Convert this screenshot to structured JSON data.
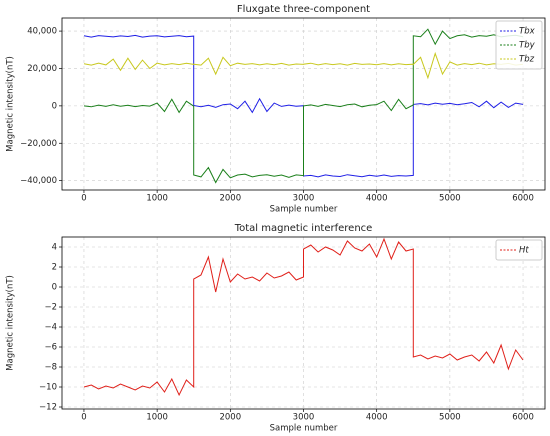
{
  "chart_data": [
    {
      "type": "line",
      "title": "Fluxgate three-component",
      "xlabel": "Sample number",
      "ylabel": "Magnetic intensity(nT)",
      "x": [
        0,
        100,
        200,
        300,
        400,
        500,
        600,
        700,
        800,
        900,
        1000,
        1100,
        1200,
        1300,
        1400,
        1500,
        1500,
        1600,
        1700,
        1800,
        1900,
        2000,
        2100,
        2200,
        2300,
        2400,
        2500,
        2600,
        2700,
        2800,
        2900,
        3000,
        3000,
        3100,
        3200,
        3300,
        3400,
        3500,
        3600,
        3700,
        3800,
        3900,
        4000,
        4100,
        4200,
        4300,
        4400,
        4500,
        4500,
        4600,
        4700,
        4800,
        4900,
        5000,
        5100,
        5200,
        5300,
        5400,
        5500,
        5600,
        5700,
        5800,
        5900,
        6000
      ],
      "series": [
        {
          "name": "Tbx",
          "color": "#1f1fe6",
          "values": [
            37500,
            36800,
            37600,
            37200,
            36900,
            37400,
            37100,
            37700,
            36800,
            37300,
            37500,
            36900,
            37200,
            37600,
            37000,
            37300,
            200,
            -500,
            300,
            -800,
            600,
            1000,
            -1500,
            2500,
            -3500,
            3800,
            -3000,
            1500,
            -300,
            400,
            -200,
            100,
            -37500,
            -37200,
            -38000,
            -36900,
            -37500,
            -37800,
            -36800,
            -37400,
            -37900,
            -37100,
            -37600,
            -37000,
            -37700,
            -37300,
            -37500,
            -37200,
            800,
            1200,
            500,
            1500,
            900,
            1300,
            600,
            1100,
            1800,
            -500,
            2500,
            -1000,
            2000,
            -800,
            1500,
            800
          ]
        },
        {
          "name": "Tby",
          "color": "#1a7f1a",
          "values": [
            0,
            -500,
            400,
            -300,
            600,
            -200,
            300,
            -400,
            200,
            -100,
            1500,
            -3000,
            3500,
            -3500,
            2500,
            -200,
            -37000,
            -38000,
            -33000,
            -41000,
            -34000,
            -38500,
            -37000,
            -36500,
            -38000,
            -37200,
            -36800,
            -37600,
            -37000,
            -38200,
            -36900,
            -37300,
            0,
            500,
            -300,
            800,
            200,
            -400,
            600,
            1000,
            -500,
            300,
            700,
            2500,
            -2500,
            3500,
            -1500,
            500,
            37500,
            37000,
            41000,
            33000,
            40000,
            36000,
            37500,
            38000,
            36800,
            37600,
            37200,
            38000,
            36900,
            37400,
            37800,
            37000
          ]
        },
        {
          "name": "Tbz",
          "color": "#c8c81e",
          "values": [
            22500,
            21800,
            22800,
            21900,
            25000,
            19000,
            25500,
            19500,
            24500,
            20000,
            22800,
            21900,
            22600,
            22100,
            22800,
            22200,
            22300,
            21800,
            25500,
            17000,
            26000,
            21500,
            22800,
            22200,
            22600,
            21900,
            22500,
            22000,
            22700,
            21800,
            22400,
            22200,
            22300,
            22800,
            21900,
            22600,
            22100,
            22500,
            21800,
            22700,
            22200,
            22400,
            22000,
            22600,
            21900,
            22500,
            22100,
            22300,
            22200,
            26000,
            15000,
            28000,
            17000,
            23500,
            21800,
            22600,
            22100,
            22800,
            21900,
            22500,
            22200,
            22700,
            21800,
            22300
          ]
        }
      ],
      "xlim": [
        -300,
        6300
      ],
      "xticks": [
        0,
        1000,
        2000,
        3000,
        4000,
        5000,
        6000
      ],
      "ylim": [
        -45000,
        47000
      ],
      "yticks": [
        {
          "value": -40000,
          "label": "−40,000"
        },
        {
          "value": -20000,
          "label": "−20,000"
        },
        0,
        {
          "value": 20000,
          "label": "20,000"
        },
        {
          "value": 40000,
          "label": "40,000"
        }
      ],
      "grid": true,
      "legend": "upper right"
    },
    {
      "type": "line",
      "title": "Total magnetic interference",
      "xlabel": "Sample number",
      "ylabel": "Magnetic intensity(nT)",
      "x": [
        0,
        100,
        200,
        300,
        400,
        500,
        600,
        700,
        800,
        900,
        1000,
        1100,
        1200,
        1300,
        1400,
        1500,
        1500,
        1600,
        1700,
        1800,
        1900,
        2000,
        2100,
        2200,
        2300,
        2400,
        2500,
        2600,
        2700,
        2800,
        2900,
        3000,
        3000,
        3100,
        3200,
        3300,
        3400,
        3500,
        3600,
        3700,
        3800,
        3900,
        4000,
        4100,
        4200,
        4300,
        4400,
        4500,
        4500,
        4600,
        4700,
        4800,
        4900,
        5000,
        5100,
        5200,
        5300,
        5400,
        5500,
        5600,
        5700,
        5800,
        5900,
        6000
      ],
      "series": [
        {
          "name": "Ht",
          "color": "#e0201a",
          "values": [
            -10,
            -9.8,
            -10.2,
            -9.9,
            -10.1,
            -9.7,
            -10,
            -10.3,
            -9.9,
            -10.1,
            -9.5,
            -10.5,
            -9.2,
            -10.8,
            -9.3,
            -10,
            0.8,
            1.2,
            3,
            -0.5,
            2.8,
            0.5,
            1.3,
            0.8,
            1,
            0.6,
            1.4,
            0.9,
            1.1,
            1.5,
            0.7,
            1,
            3.8,
            4.2,
            3.5,
            4,
            3.7,
            3.2,
            4.6,
            3.9,
            3.6,
            4.3,
            3,
            4.8,
            2.8,
            4.5,
            3.6,
            3.8,
            -7,
            -6.8,
            -7.2,
            -6.9,
            -7.1,
            -6.7,
            -7.3,
            -7,
            -6.8,
            -7.4,
            -6.5,
            -7.6,
            -5.8,
            -8.2,
            -6.3,
            -7.3
          ]
        }
      ],
      "xlim": [
        -300,
        6300
      ],
      "xticks": [
        0,
        1000,
        2000,
        3000,
        4000,
        5000,
        6000
      ],
      "ylim": [
        -12.2,
        5
      ],
      "yticks": [
        {
          "value": -12,
          "label": "−12"
        },
        {
          "value": -10,
          "label": "−10"
        },
        {
          "value": -8,
          "label": "−8"
        },
        {
          "value": -6,
          "label": "−6"
        },
        {
          "value": -4,
          "label": "−4"
        },
        {
          "value": -2,
          "label": "−2"
        },
        0,
        2,
        4
      ],
      "grid": true,
      "legend": "upper right"
    }
  ]
}
